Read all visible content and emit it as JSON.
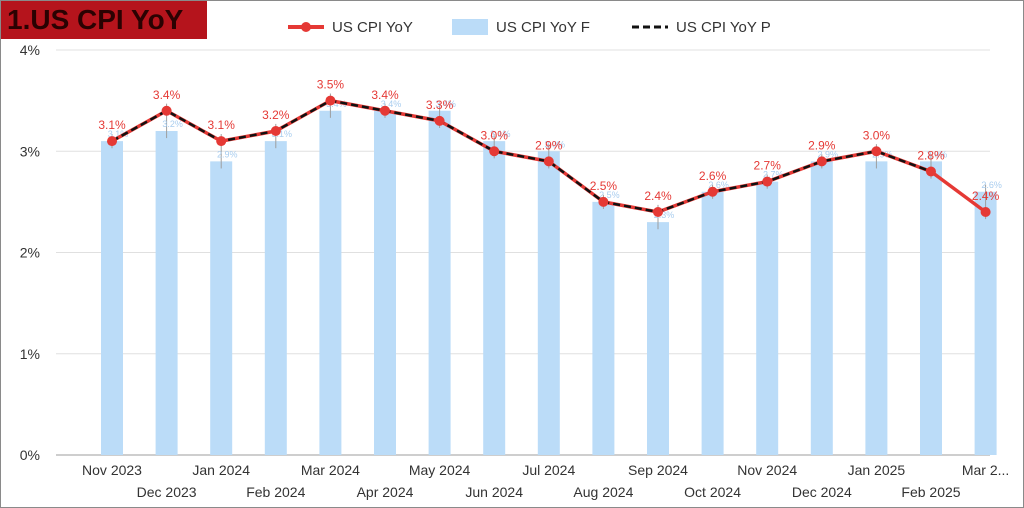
{
  "title": "1.US CPI YoY",
  "legend": {
    "actual": "US CPI YoY",
    "forecast": "US CPI YoY F",
    "previous": "US CPI YoY P"
  },
  "colors": {
    "title_bg": "#b5141c",
    "actual": "#e53935",
    "forecast": "#bbdcf8",
    "previous": "#111111",
    "grid": "#e0e0e0"
  },
  "chart_data": {
    "type": "bar",
    "categories": [
      "Nov 2023",
      "Dec 2023",
      "Jan 2024",
      "Feb 2024",
      "Mar 2024",
      "Apr 2024",
      "May 2024",
      "Jun 2024",
      "Jul 2024",
      "Aug 2024",
      "Sep 2024",
      "Oct 2024",
      "Nov 2024",
      "Dec 2024",
      "Jan 2025",
      "Feb 2025",
      "Mar 2..."
    ],
    "series": [
      {
        "name": "US CPI YoY",
        "type": "line",
        "values": [
          3.1,
          3.4,
          3.1,
          3.2,
          3.5,
          3.4,
          3.3,
          3.0,
          2.9,
          2.5,
          2.4,
          2.6,
          2.7,
          2.9,
          3.0,
          2.8,
          2.4
        ],
        "labels": [
          "3.1%",
          "3.4%",
          "3.1%",
          "3.2%",
          "3.5%",
          "3.4%",
          "3.3%",
          "3.0%",
          "2.9%",
          "2.5%",
          "2.4%",
          "2.6%",
          "2.7%",
          "2.9%",
          "3.0%",
          "2.8%",
          "2.4%"
        ]
      },
      {
        "name": "US CPI YoY F",
        "type": "bar",
        "values": [
          3.1,
          3.2,
          2.9,
          3.1,
          3.4,
          3.4,
          3.4,
          3.1,
          3.0,
          2.5,
          2.3,
          2.6,
          2.7,
          2.9,
          2.9,
          2.9,
          2.6
        ],
        "labels": [
          "3.1%",
          "3.2%",
          "2.9%",
          "3.1%",
          "3.4%",
          "3.4%",
          "3.4%",
          "3.1%",
          "3.0%",
          "2.5%",
          "2.3%",
          "2.6%",
          "2.7%",
          "2.9%",
          "2.9%",
          "2.9%",
          "2.6%"
        ]
      },
      {
        "name": "US CPI YoY P",
        "type": "line",
        "values": [
          3.1,
          3.4,
          3.1,
          3.2,
          3.5,
          3.4,
          3.3,
          3.0,
          2.9,
          2.5,
          2.4,
          2.6,
          2.7,
          2.9,
          3.0,
          2.8,
          null
        ]
      }
    ],
    "yticks": [
      "0%",
      "1%",
      "2%",
      "3%",
      "4%"
    ],
    "ylim": [
      0,
      4
    ],
    "grid": true,
    "legend_position": "top"
  }
}
